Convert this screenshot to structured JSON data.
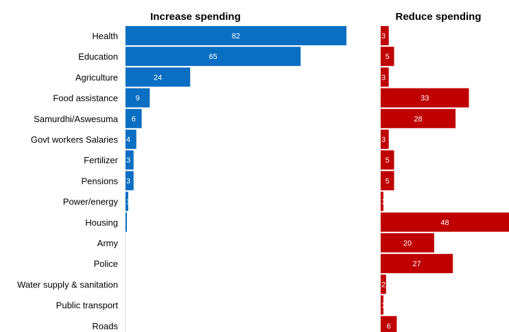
{
  "chart_data": {
    "type": "bar",
    "orientation": "horizontal",
    "categories": [
      "Health",
      "Education",
      "Agriculture",
      "Food assistance",
      "Samurdhi/Aswesuma",
      "Govt workers Salaries",
      "Fertilizer",
      "Pensions",
      "Power/energy",
      "Housing",
      "Army",
      "Police",
      "Water supply & sanitation",
      "Public transport",
      "Roads"
    ],
    "series": [
      {
        "name": "Increase spending",
        "color": "#0a6fc2",
        "values": [
          82,
          65,
          24,
          9,
          6,
          4,
          3,
          3,
          1,
          0.5,
          0,
          0,
          0,
          0,
          0
        ],
        "labels": [
          "82",
          "65",
          "24",
          "9",
          "6",
          "4",
          "3",
          "3",
          "1",
          "1",
          "",
          "",
          "",
          "",
          ""
        ]
      },
      {
        "name": "Reduce spending",
        "color": "#c00000",
        "values": [
          3,
          5,
          3,
          33,
          28,
          3,
          5,
          5,
          1,
          48,
          20,
          27,
          2,
          1,
          6
        ],
        "labels": [
          "3",
          "5",
          "3",
          "33",
          "28",
          "3",
          "5",
          "5",
          "1",
          "48",
          "20",
          "27",
          "2",
          "1",
          "6"
        ]
      }
    ],
    "grid": false,
    "legend": "none"
  }
}
